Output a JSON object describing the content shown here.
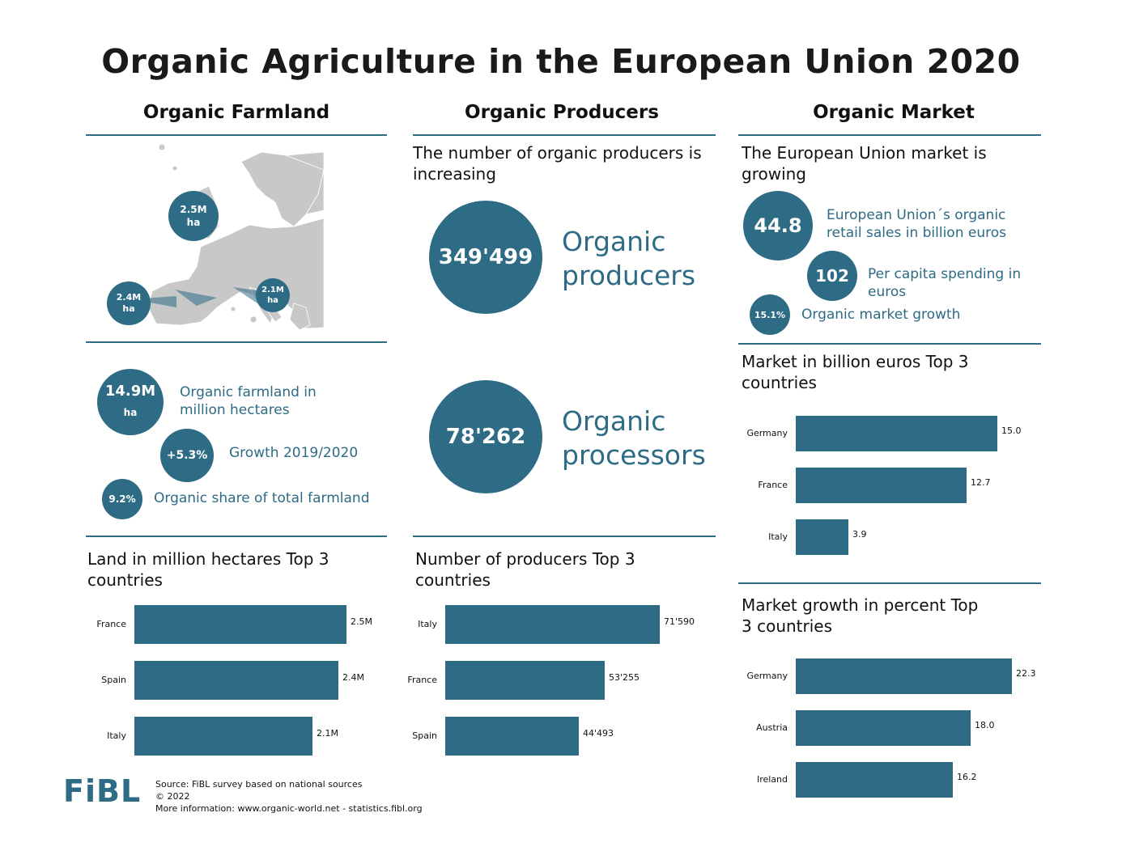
{
  "title": "Organic Agriculture in the European Union 2020",
  "columns": {
    "farmland": "Organic Farmland",
    "producers": "Organic Producers",
    "market": "Organic Market"
  },
  "map": {
    "france": {
      "value": "2.5M",
      "unit": "ha"
    },
    "spain": {
      "value": "2.4M",
      "unit": "ha"
    },
    "italy": {
      "value": "2.1M",
      "unit": "ha"
    }
  },
  "farmland_stats": {
    "area": {
      "value": "14.9M",
      "unit": "ha",
      "label": "Organic farmland in million hectares"
    },
    "growth": {
      "value": "+5.3%",
      "label": "Growth 2019/2020"
    },
    "share": {
      "value": "9.2%",
      "label": "Organic share of total farmland"
    }
  },
  "producers_intro": "The number of organic producers is increasing",
  "producers_stats": {
    "producers": {
      "value": "349'499",
      "label": "Organic producers"
    },
    "processors": {
      "value": "78'262",
      "label": "Organic processors"
    }
  },
  "market_intro": "The European Union market is growing",
  "market_stats": {
    "sales": {
      "value": "44.8",
      "label": "European Union´s organic retail sales in billion euros"
    },
    "per_capita": {
      "value": "102",
      "label": "Per capita spending in euros"
    },
    "growth": {
      "value": "15.1%",
      "label": "Organic market growth"
    }
  },
  "chart_data": [
    {
      "type": "bar",
      "title": "Land in million hectares Top 3 countries",
      "categories": [
        "France",
        "Spain",
        "Italy"
      ],
      "values": [
        2.5,
        2.4,
        2.1
      ],
      "value_labels": [
        "2.5M",
        "2.4M",
        "2.1M"
      ],
      "max": 2.5
    },
    {
      "type": "bar",
      "title": "Number of producers Top 3 countries",
      "categories": [
        "Italy",
        "France",
        "Spain"
      ],
      "values": [
        71590,
        53255,
        44493
      ],
      "value_labels": [
        "71'590",
        "53'255",
        "44'493"
      ],
      "max": 71590
    },
    {
      "type": "bar",
      "title": "Market in billion euros Top 3 countries",
      "categories": [
        "Germany",
        "France",
        "Italy"
      ],
      "values": [
        15.0,
        12.7,
        3.9
      ],
      "value_labels": [
        "15.0",
        "12.7",
        "3.9"
      ],
      "max": 15.0
    },
    {
      "type": "bar",
      "title": "Market growth in percent Top 3 countries",
      "categories": [
        "Germany",
        "Austria",
        "Ireland"
      ],
      "values": [
        22.3,
        18.0,
        16.2
      ],
      "value_labels": [
        "22.3",
        "18.0",
        "16.2"
      ],
      "max": 22.3
    }
  ],
  "footer": {
    "logo": "FiBL",
    "source": "Source: FiBL survey based on national sources",
    "copyright": "© 2022",
    "more": "More information: www.organic-world.net - statistics.fibl.org"
  },
  "colors": {
    "accent": "#2e6b85",
    "map_land": "#c8c8c8"
  }
}
